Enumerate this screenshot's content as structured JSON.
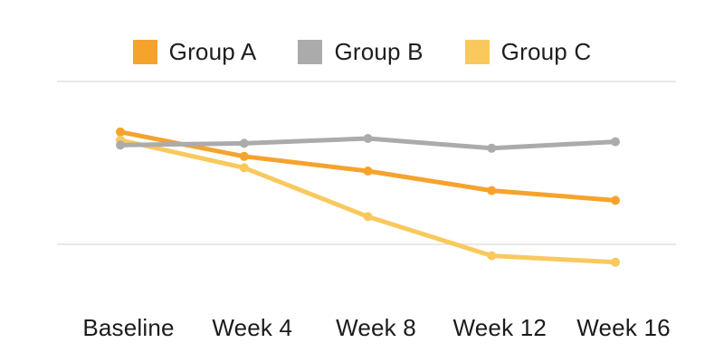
{
  "chart_data": {
    "type": "line",
    "title": "",
    "categories": [
      "Baseline",
      "Week 4",
      "Week 8",
      "Week 12",
      "Week 16"
    ],
    "series": [
      {
        "name": "Group A",
        "color": "#F5A32D",
        "values": [
          69,
          54,
          45,
          33,
          27
        ]
      },
      {
        "name": "Group B",
        "color": "#ABABAB",
        "values": [
          61,
          62,
          65,
          59,
          63
        ]
      },
      {
        "name": "Group C",
        "color": "#F9C95E",
        "values": [
          64,
          47,
          17,
          -7,
          -11
        ]
      }
    ],
    "y_axis": {
      "visible": false,
      "note": "No y-axis tick labels are shown in the image; values are estimated on a relative 0-100 scale where the lower gridline = 0 and the upper gridline = 100.",
      "gridline_values": [
        0,
        100
      ]
    },
    "x_axis": {
      "visible_labels": true
    },
    "legend_position": "top-center",
    "grid": "horizontal-only",
    "marker": "circle"
  },
  "legend": {
    "items": [
      {
        "label": "Group A",
        "color": "#F5A32D"
      },
      {
        "label": "Group B",
        "color": "#ABABAB"
      },
      {
        "label": "Group C",
        "color": "#F9C95E"
      }
    ]
  },
  "colors": {
    "background": "#FFFFFF",
    "gridline": "#E8E8E8",
    "text": "#1E1E1E"
  }
}
